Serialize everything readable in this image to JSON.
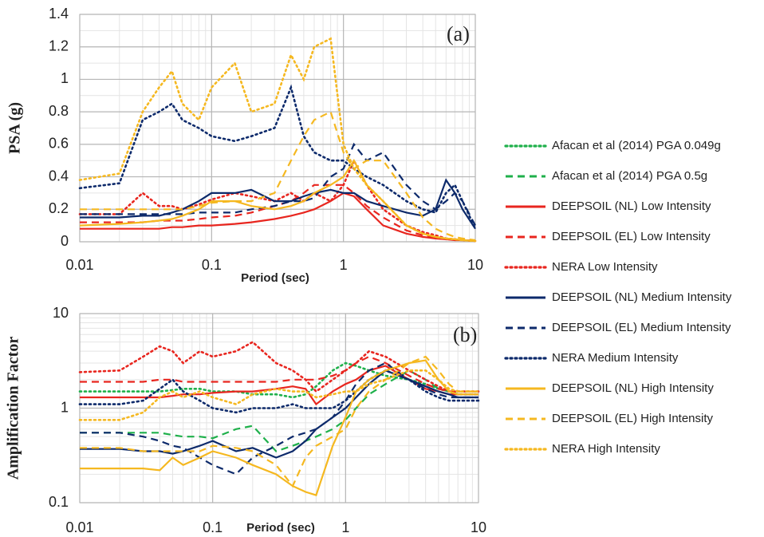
{
  "chart_data": [
    {
      "type": "line",
      "annotation": "(a)",
      "x_label": "Period (sec)",
      "y_label": "PSA (g)",
      "xscale": "log",
      "grid": true,
      "xlim": [
        0.01,
        10
      ],
      "xticks": [
        0.01,
        0.1,
        1,
        10
      ],
      "ylim": [
        0,
        1.4
      ],
      "yticks": [
        0,
        0.2,
        0.4,
        0.6,
        0.8,
        1,
        1.2,
        1.4
      ],
      "x": [
        0.01,
        0.02,
        0.03,
        0.04,
        0.05,
        0.06,
        0.08,
        0.1,
        0.15,
        0.2,
        0.3,
        0.4,
        0.5,
        0.6,
        0.8,
        1,
        1.2,
        1.5,
        2,
        3,
        4,
        5,
        6,
        7,
        8,
        10
      ],
      "series": [
        {
          "color": "#e8261f",
          "dash": "solid",
          "values": [
            0.08,
            0.08,
            0.08,
            0.08,
            0.09,
            0.09,
            0.1,
            0.1,
            0.11,
            0.12,
            0.14,
            0.16,
            0.18,
            0.2,
            0.25,
            0.3,
            0.28,
            0.2,
            0.1,
            0.05,
            0.03,
            0.02,
            0.015,
            0.01,
            0.01,
            0.005
          ]
        },
        {
          "color": "#e8261f",
          "dash": "dashed",
          "values": [
            0.12,
            0.12,
            0.12,
            0.13,
            0.13,
            0.13,
            0.14,
            0.15,
            0.16,
            0.18,
            0.22,
            0.25,
            0.3,
            0.35,
            0.35,
            0.35,
            0.3,
            0.22,
            0.15,
            0.07,
            0.04,
            0.03,
            0.02,
            0.015,
            0.01,
            0.005
          ]
        },
        {
          "color": "#e8261f",
          "dash": "dotted",
          "values": [
            0.17,
            0.17,
            0.3,
            0.22,
            0.22,
            0.2,
            0.23,
            0.26,
            0.3,
            0.28,
            0.25,
            0.3,
            0.25,
            0.3,
            0.25,
            0.35,
            0.5,
            0.35,
            0.2,
            0.1,
            0.06,
            0.04,
            0.02,
            0.015,
            0.01,
            0.005
          ]
        },
        {
          "color": "#0d2a6b",
          "dash": "solid",
          "values": [
            0.15,
            0.15,
            0.16,
            0.16,
            0.18,
            0.2,
            0.25,
            0.3,
            0.3,
            0.32,
            0.25,
            0.25,
            0.28,
            0.3,
            0.32,
            0.3,
            0.3,
            0.25,
            0.22,
            0.18,
            0.16,
            0.2,
            0.38,
            0.3,
            0.2,
            0.08
          ]
        },
        {
          "color": "#0d2a6b",
          "dash": "dashed",
          "values": [
            0.17,
            0.17,
            0.17,
            0.17,
            0.17,
            0.17,
            0.18,
            0.18,
            0.18,
            0.2,
            0.22,
            0.25,
            0.25,
            0.27,
            0.4,
            0.45,
            0.6,
            0.5,
            0.55,
            0.35,
            0.25,
            0.2,
            0.25,
            0.3,
            0.25,
            0.1
          ]
        },
        {
          "color": "#0d2a6b",
          "dash": "dotted",
          "values": [
            0.33,
            0.36,
            0.75,
            0.8,
            0.85,
            0.75,
            0.7,
            0.65,
            0.62,
            0.65,
            0.7,
            0.95,
            0.65,
            0.55,
            0.5,
            0.5,
            0.45,
            0.4,
            0.35,
            0.25,
            0.2,
            0.18,
            0.3,
            0.35,
            0.25,
            0.08
          ]
        },
        {
          "color": "#f5b820",
          "dash": "solid",
          "values": [
            0.1,
            0.11,
            0.12,
            0.13,
            0.14,
            0.16,
            0.2,
            0.25,
            0.25,
            0.22,
            0.2,
            0.22,
            0.25,
            0.3,
            0.35,
            0.4,
            0.5,
            0.35,
            0.25,
            0.1,
            0.05,
            0.03,
            0.02,
            0.015,
            0.01,
            0.005
          ]
        },
        {
          "color": "#f5b820",
          "dash": "dashed",
          "values": [
            0.2,
            0.2,
            0.2,
            0.2,
            0.2,
            0.2,
            0.22,
            0.24,
            0.25,
            0.25,
            0.3,
            0.5,
            0.65,
            0.75,
            0.8,
            0.55,
            0.45,
            0.5,
            0.5,
            0.3,
            0.15,
            0.08,
            0.05,
            0.03,
            0.02,
            0.01
          ]
        },
        {
          "color": "#f5b820",
          "dash": "dotted",
          "values": [
            0.38,
            0.42,
            0.8,
            0.95,
            1.05,
            0.85,
            0.75,
            0.95,
            1.1,
            0.8,
            0.85,
            1.15,
            1.0,
            1.2,
            1.25,
            0.6,
            0.45,
            0.35,
            0.25,
            0.1,
            0.05,
            0.03,
            0.02,
            0.015,
            0.01,
            0.005
          ]
        }
      ]
    },
    {
      "type": "line",
      "annotation": "(b)",
      "x_label": "Period (sec)",
      "y_label": "Amplification Factor",
      "xscale": "log",
      "yscale": "log",
      "grid": true,
      "legend": "right",
      "xlim": [
        0.01,
        10
      ],
      "xticks": [
        0.01,
        0.1,
        1,
        10
      ],
      "ylim": [
        0.1,
        10
      ],
      "yticks": [
        0.1,
        1,
        10
      ],
      "x": [
        0.01,
        0.02,
        0.03,
        0.04,
        0.05,
        0.06,
        0.08,
        0.1,
        0.15,
        0.2,
        0.3,
        0.4,
        0.5,
        0.6,
        0.8,
        1,
        1.2,
        1.5,
        2,
        3,
        4,
        5,
        6,
        7,
        8,
        10
      ],
      "series": [
        {
          "name": "Afacan et al (2014) PGA 0.049g",
          "color": "#1fb04b",
          "dash": "dotted",
          "values": [
            1.5,
            1.5,
            1.5,
            1.5,
            1.55,
            1.6,
            1.6,
            1.5,
            1.5,
            1.4,
            1.4,
            1.3,
            1.4,
            1.7,
            2.5,
            3,
            2.8,
            2.5,
            2.2,
            2,
            1.8,
            1.6,
            1.5,
            1.4,
            1.4,
            1.4
          ]
        },
        {
          "name": "Afacan et al (2014) PGA 0.5g",
          "color": "#1fb04b",
          "dash": "dashed",
          "values": [
            0.55,
            0.55,
            0.55,
            0.55,
            0.52,
            0.5,
            0.5,
            0.48,
            0.6,
            0.65,
            0.35,
            0.4,
            0.45,
            0.5,
            0.6,
            0.75,
            1,
            1.4,
            1.8,
            2.5,
            2,
            1.6,
            1.5,
            1.4,
            1.4,
            1.4
          ]
        },
        {
          "name": "DEEPSOIL (NL) Low Intensity",
          "color": "#e8261f",
          "dash": "solid",
          "values": [
            1.3,
            1.3,
            1.3,
            1.3,
            1.35,
            1.4,
            1.4,
            1.45,
            1.5,
            1.5,
            1.6,
            1.7,
            1.6,
            1.1,
            1.5,
            1.8,
            2,
            2.5,
            2.8,
            2,
            1.6,
            1.5,
            1.4,
            1.4,
            1.4,
            1.4
          ]
        },
        {
          "name": "DEEPSOIL (EL) Low Intensity",
          "color": "#e8261f",
          "dash": "dashed",
          "values": [
            1.9,
            1.9,
            1.9,
            2,
            2,
            1.9,
            1.9,
            1.9,
            1.9,
            1.9,
            1.9,
            2,
            2,
            2,
            2.2,
            2.5,
            3,
            3.5,
            3,
            2.2,
            1.8,
            1.6,
            1.5,
            1.5,
            1.5,
            1.5
          ]
        },
        {
          "name": "NERA Low Intensity",
          "color": "#e8261f",
          "dash": "dotted",
          "values": [
            2.4,
            2.5,
            3.5,
            4.5,
            4,
            3,
            4,
            3.5,
            4,
            5,
            3,
            2.5,
            2,
            1.5,
            2,
            2.5,
            3,
            4,
            3.5,
            2.5,
            2,
            1.7,
            1.5,
            1.5,
            1.5,
            1.5
          ]
        },
        {
          "name": "DEEPSOIL (NL) Medium Intensity",
          "color": "#0d2a6b",
          "dash": "solid",
          "values": [
            0.37,
            0.37,
            0.35,
            0.35,
            0.33,
            0.35,
            0.4,
            0.45,
            0.35,
            0.38,
            0.3,
            0.35,
            0.45,
            0.6,
            0.8,
            1,
            1.3,
            1.8,
            2.5,
            2,
            1.7,
            1.5,
            1.4,
            1.3,
            1.3,
            1.3
          ]
        },
        {
          "name": "DEEPSOIL (EL) Medium Intensity",
          "color": "#0d2a6b",
          "dash": "dashed",
          "values": [
            0.55,
            0.55,
            0.5,
            0.45,
            0.4,
            0.38,
            0.3,
            0.25,
            0.2,
            0.3,
            0.4,
            0.5,
            0.55,
            0.6,
            0.8,
            1.2,
            1.8,
            2.5,
            3,
            2,
            1.6,
            1.4,
            1.3,
            1.3,
            1.3,
            1.3
          ]
        },
        {
          "name": "NERA Medium Intensity",
          "color": "#0d2a6b",
          "dash": "dotted",
          "values": [
            1.1,
            1.1,
            1.2,
            1.6,
            2,
            1.5,
            1.2,
            1,
            0.9,
            1,
            1,
            1.1,
            1,
            1,
            1,
            1.2,
            1.5,
            2,
            2.5,
            2,
            1.5,
            1.3,
            1.2,
            1.2,
            1.2,
            1.2
          ]
        },
        {
          "name": "DEEPSOIL (NL) High Intensity",
          "color": "#f5b820",
          "dash": "solid",
          "values": [
            0.23,
            0.23,
            0.23,
            0.22,
            0.3,
            0.25,
            0.3,
            0.35,
            0.3,
            0.25,
            0.2,
            0.15,
            0.13,
            0.12,
            0.4,
            0.8,
            1.5,
            2,
            2.5,
            3,
            3.2,
            2,
            1.5,
            1.4,
            1.4,
            1.4
          ]
        },
        {
          "name": "DEEPSOIL (EL) High Intensity",
          "color": "#f5b820",
          "dash": "dashed",
          "values": [
            0.38,
            0.38,
            0.35,
            0.35,
            0.35,
            0.35,
            0.35,
            0.4,
            0.38,
            0.35,
            0.25,
            0.15,
            0.3,
            0.4,
            0.5,
            0.6,
            1,
            1.5,
            2,
            3,
            3.5,
            2.5,
            1.8,
            1.5,
            1.5,
            1.5
          ]
        },
        {
          "name": "NERA High Intensity",
          "color": "#f5b820",
          "dash": "dotted",
          "values": [
            0.75,
            0.75,
            0.9,
            1.3,
            1.5,
            1.3,
            1.5,
            1.3,
            1.1,
            1.4,
            1.6,
            1.5,
            1.5,
            1.3,
            1.4,
            1.5,
            1.5,
            1.8,
            2,
            2.5,
            2.5,
            2,
            1.6,
            1.5,
            1.5,
            1.5
          ]
        }
      ]
    }
  ]
}
